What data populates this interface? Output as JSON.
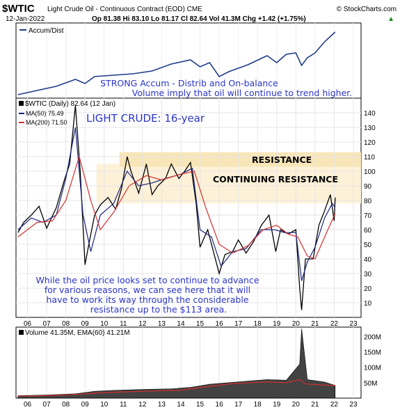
{
  "header": {
    "symbol": "$WTIC",
    "name": "Light Crude Oil - Continuous Contract (EOD) CME",
    "source": "© StockCharts.com",
    "date": "12-Jan-2022",
    "quote": "Op 81.38  Hi 83.10  Lo 81.17  Cl 82.64  Vol 41.3M  Chg +1.42 (+1.75%)",
    "quote_arrow": "▲"
  },
  "accum_panel": {
    "legend": "Accum/Dist",
    "annotation_line1": "STRONG Accum - Distrib and On-balance",
    "annotation_line2": "Volume imply that oil will continue to trend higher."
  },
  "price_panel": {
    "legend_main": "$WTIC (Daily) 82.64 (12 Jan)",
    "legend_ma50": "MA(50) 75.49",
    "legend_ma200": "MA(200) 71.50",
    "title": "LIGHT CRUDE: 16-year",
    "resistance_label": "RESISTANCE",
    "continuing_label": "CONTINUING RESISTANCE",
    "note_lines": [
      "While the oil price looks set to continue to advance",
      "for various reasons, we can see here that it will",
      "have to work its way through the considerable",
      "resistance up to the $113 area."
    ],
    "y_ticks": [
      "140",
      "130",
      "120",
      "110",
      "100",
      "90",
      "80",
      "70",
      "60",
      "50",
      "40",
      "30",
      "20",
      "10"
    ]
  },
  "volume_panel": {
    "legend": "Volume 41.35M, EMA(60) 41.21M",
    "y_ticks": [
      "200M",
      "150M",
      "100M",
      "50M"
    ]
  },
  "x_ticks": [
    "06",
    "07",
    "08",
    "09",
    "10",
    "11",
    "12",
    "13",
    "14",
    "15",
    "16",
    "17",
    "18",
    "19",
    "20",
    "21",
    "22",
    "23"
  ],
  "colors": {
    "price": "#000000",
    "ma50": "#1a237e",
    "ma200": "#d32f2f",
    "accum": "#1f3b8a",
    "resistance_band": "#f9e6b8",
    "continuing_band": "#fdf1d8",
    "annotation": "#2b35c8"
  },
  "chart_data": {
    "type": "line",
    "x_range": [
      2005.4,
      2023.4
    ],
    "price": {
      "ylim": [
        0,
        150
      ],
      "resistance_zone": [
        103,
        113
      ],
      "continuing_resistance_zone": [
        78,
        105
      ],
      "series": [
        {
          "name": "$WTIC",
          "x": [
            2005.5,
            2005.8,
            2006.2,
            2006.6,
            2007.0,
            2007.5,
            2007.9,
            2008.2,
            2008.5,
            2008.75,
            2009.0,
            2009.2,
            2009.5,
            2009.8,
            2010.2,
            2010.6,
            2010.9,
            2011.2,
            2011.4,
            2011.8,
            2012.2,
            2012.5,
            2012.8,
            2013.2,
            2013.5,
            2013.9,
            2014.2,
            2014.5,
            2014.8,
            2015.0,
            2015.4,
            2015.7,
            2016.0,
            2016.3,
            2016.7,
            2017.0,
            2017.4,
            2017.8,
            2018.2,
            2018.6,
            2018.95,
            2019.2,
            2019.6,
            2020.0,
            2020.2,
            2020.3,
            2020.5,
            2020.9,
            2021.2,
            2021.5,
            2021.8,
            2022.0,
            2022.05
          ],
          "y": [
            58,
            65,
            70,
            76,
            61,
            75,
            93,
            105,
            145,
            100,
            36,
            50,
            70,
            77,
            82,
            74,
            88,
            110,
            100,
            85,
            105,
            84,
            90,
            95,
            105,
            95,
            100,
            106,
            78,
            48,
            60,
            45,
            30,
            43,
            45,
            53,
            44,
            52,
            63,
            70,
            45,
            60,
            57,
            60,
            20,
            5,
            40,
            40,
            63,
            73,
            84,
            66,
            82
          ]
        },
        {
          "name": "MA(50)",
          "x": [
            2005.5,
            2006.2,
            2006.8,
            2007.5,
            2008.0,
            2008.5,
            2008.9,
            2009.3,
            2009.8,
            2010.5,
            2011.2,
            2011.8,
            2012.5,
            2013.2,
            2014.0,
            2014.6,
            2015.0,
            2015.6,
            2016.1,
            2016.7,
            2017.4,
            2018.2,
            2018.9,
            2019.4,
            2020.0,
            2020.3,
            2020.6,
            2021.0,
            2021.5,
            2021.9,
            2022.05
          ],
          "y": [
            60,
            68,
            65,
            70,
            95,
            130,
            70,
            45,
            70,
            78,
            100,
            90,
            92,
            95,
            98,
            102,
            60,
            55,
            35,
            45,
            47,
            60,
            60,
            58,
            58,
            25,
            38,
            48,
            68,
            78,
            75
          ]
        },
        {
          "name": "MA(200)",
          "x": [
            2005.5,
            2006.5,
            2007.3,
            2008.0,
            2008.7,
            2009.3,
            2009.8,
            2010.5,
            2011.3,
            2012.2,
            2013.0,
            2014.0,
            2014.7,
            2015.3,
            2016.0,
            2016.7,
            2017.5,
            2018.3,
            2019.0,
            2019.6,
            2020.1,
            2020.6,
            2021.0,
            2021.6,
            2022.05
          ],
          "y": [
            55,
            65,
            66,
            80,
            110,
            80,
            60,
            72,
            90,
            97,
            94,
            98,
            100,
            75,
            50,
            44,
            49,
            60,
            63,
            57,
            55,
            42,
            40,
            58,
            71
          ]
        }
      ]
    },
    "accum_dist": {
      "series": [
        {
          "name": "Accum/Dist",
          "x": [
            2005.5,
            2006.5,
            2007.5,
            2008.5,
            2009.0,
            2009.5,
            2010.5,
            2011.5,
            2012.5,
            2013.5,
            2014.5,
            2015.0,
            2015.5,
            2016.0,
            2016.5,
            2017.5,
            2018.5,
            2019.0,
            2019.5,
            2020.0,
            2020.3,
            2020.6,
            2021.0,
            2021.5,
            2022.05
          ],
          "y": [
            2,
            8,
            14,
            24,
            18,
            28,
            30,
            32,
            36,
            46,
            52,
            42,
            48,
            28,
            35,
            45,
            58,
            48,
            60,
            62,
            44,
            55,
            62,
            78,
            92
          ]
        }
      ]
    },
    "volume": {
      "ylim": [
        0,
        230
      ],
      "series": [
        {
          "name": "Volume",
          "x": [
            2005.5,
            2007.0,
            2008.5,
            2009.5,
            2010.5,
            2012.0,
            2013.5,
            2014.5,
            2015.5,
            2016.5,
            2017.5,
            2018.5,
            2019.5,
            2020.2,
            2020.3,
            2020.6,
            2021.5,
            2022.05
          ],
          "y": [
            8,
            10,
            14,
            22,
            25,
            28,
            30,
            35,
            45,
            50,
            55,
            60,
            58,
            110,
            225,
            60,
            52,
            41
          ]
        },
        {
          "name": "EMA(60)",
          "x": [
            2005.5,
            2007.0,
            2008.5,
            2010.0,
            2012.0,
            2014.0,
            2015.5,
            2016.5,
            2017.5,
            2018.5,
            2019.5,
            2020.2,
            2020.5,
            2021.5,
            2022.05
          ],
          "y": [
            6,
            8,
            12,
            18,
            22,
            26,
            38,
            46,
            50,
            52,
            50,
            60,
            46,
            42,
            41
          ]
        }
      ]
    }
  }
}
